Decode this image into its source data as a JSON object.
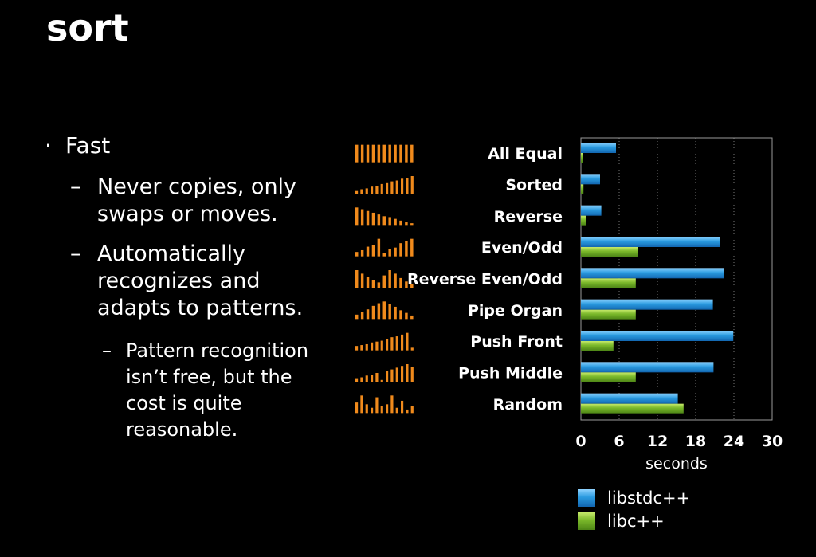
{
  "slide": {
    "title": "sort",
    "bullet": "Fast",
    "sub_bullets": [
      "Never copies, only swaps or moves.",
      "Automatically recognizes and adapts to patterns."
    ],
    "sub_sub_bullet": "Pattern recognition isn’t free, but the cost is quite reasonable.",
    "bullet_marker": "·",
    "dash_marker": "–"
  },
  "colors": {
    "background": "#000000",
    "libstdcxx": "#2a9be0",
    "libcxx": "#7ab82a",
    "pattern_icons": "#f08a1c",
    "text": "#ffffff"
  },
  "chart_data": {
    "type": "bar",
    "orientation": "horizontal",
    "categories": [
      "All Equal",
      "Sorted",
      "Reverse",
      "Even/Odd",
      "Reverse Even/Odd",
      "Pipe Organ",
      "Push Front",
      "Push Middle",
      "Random"
    ],
    "series": [
      {
        "name": "libstdc++",
        "values": [
          5.5,
          3.0,
          3.2,
          21.8,
          22.5,
          20.7,
          23.9,
          20.8,
          15.2
        ]
      },
      {
        "name": "libc++",
        "values": [
          0.3,
          0.4,
          0.8,
          9.0,
          8.6,
          8.6,
          5.1,
          8.6,
          16.1
        ]
      }
    ],
    "xlabel": "seconds",
    "xlim": [
      0,
      30
    ],
    "xticks": [
      0,
      6,
      12,
      18,
      24,
      30
    ],
    "grid": "vertical dotted",
    "legend": "bottom",
    "pattern_icons": [
      [
        1,
        1,
        1,
        1,
        1,
        1,
        1,
        1,
        1,
        1,
        1
      ],
      [
        0.15,
        0.25,
        0.3,
        0.4,
        0.45,
        0.55,
        0.6,
        0.7,
        0.75,
        0.85,
        0.9,
        1
      ],
      [
        1,
        0.9,
        0.8,
        0.7,
        0.6,
        0.5,
        0.45,
        0.35,
        0.25,
        0.15,
        0.1
      ],
      [
        0.25,
        0.35,
        0.55,
        0.65,
        1,
        0.2,
        0.4,
        0.5,
        0.75,
        0.85,
        1
      ],
      [
        1,
        0.8,
        0.6,
        0.45,
        0.3,
        0.7,
        1,
        0.8,
        0.55,
        0.35,
        0.2
      ],
      [
        0.25,
        0.4,
        0.55,
        0.75,
        0.9,
        1,
        0.85,
        0.7,
        0.5,
        0.35,
        0.2
      ],
      [
        0.25,
        0.3,
        0.35,
        0.45,
        0.5,
        0.55,
        0.65,
        0.75,
        0.8,
        0.9,
        1,
        0.15
      ],
      [
        0.2,
        0.25,
        0.35,
        0.4,
        0.5,
        0.1,
        0.6,
        0.7,
        0.8,
        0.9,
        1,
        0.85
      ],
      [
        0.6,
        1,
        0.5,
        0.3,
        0.9,
        0.4,
        0.5,
        1,
        0.3,
        0.7,
        0.2,
        0.4
      ]
    ]
  }
}
